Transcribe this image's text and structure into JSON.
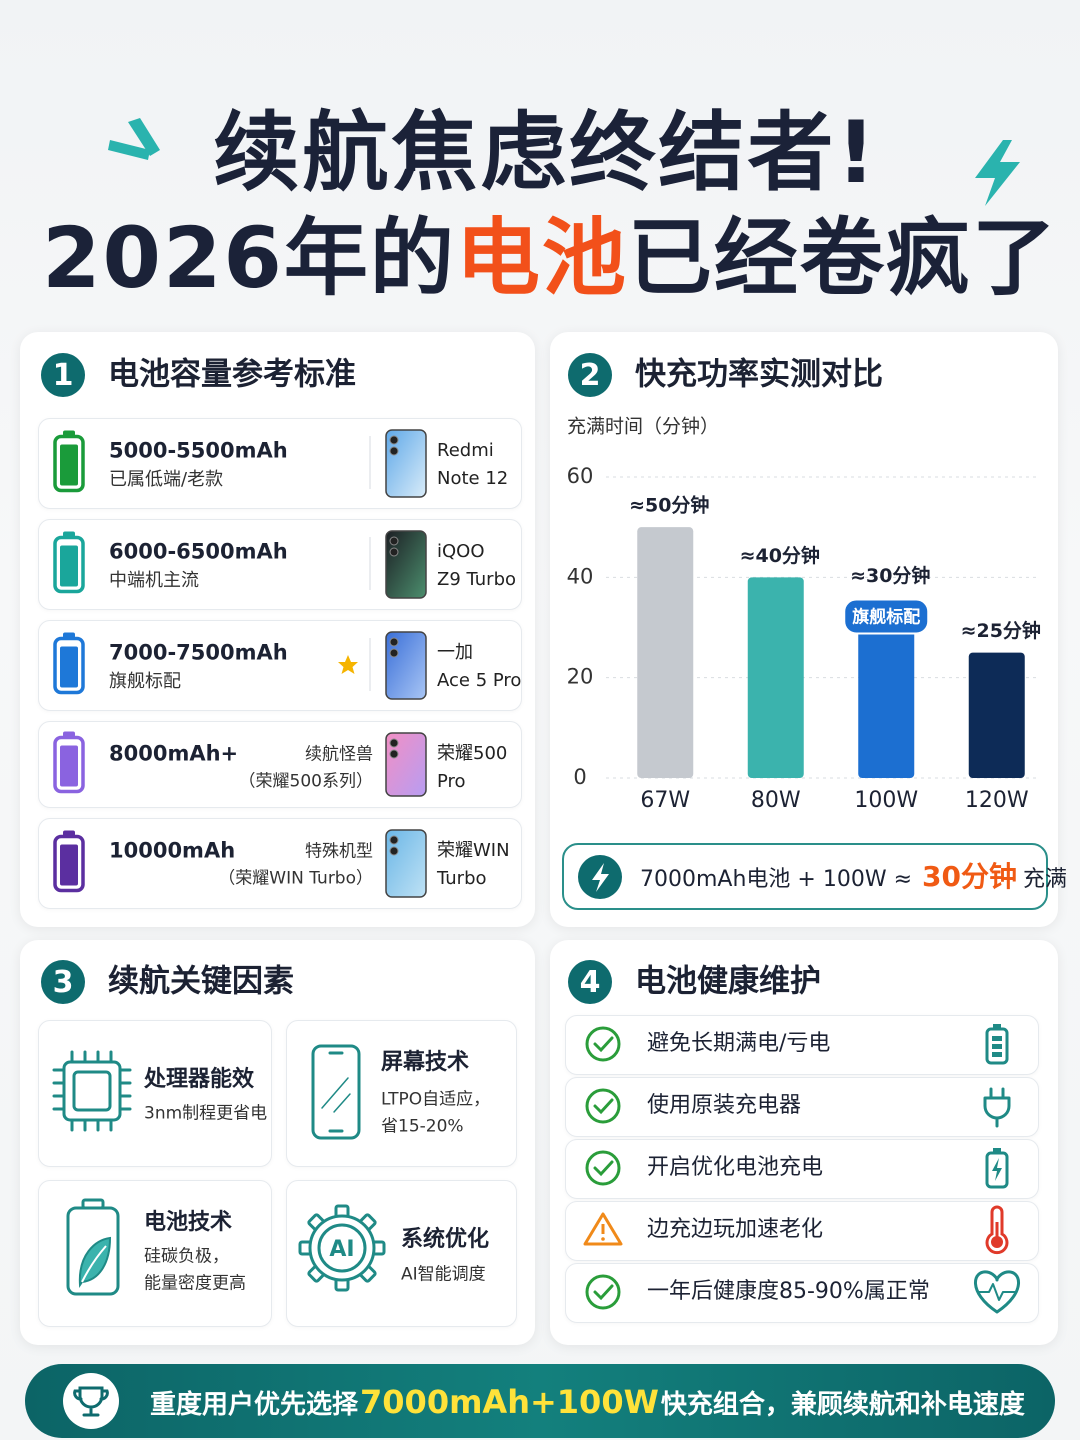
{
  "title": {
    "line1": "续航焦虑终结者!",
    "line2": {
      "before": "2026年的",
      "highlight": "电池",
      "after": "已经卷疯了"
    }
  },
  "capacity": {
    "number": "1",
    "heading": "电池容量参考标准",
    "rows": [
      {
        "capacity": "5000-5500mAh",
        "note": "已属低端/老款",
        "phone": [
          "Redmi",
          "Note 12"
        ]
      },
      {
        "capacity": "6000-6500mAh",
        "note": "中端机主流",
        "phone": [
          "iQOO",
          "Z9 Turbo"
        ]
      },
      {
        "capacity": "7000-7500mAh",
        "note": "旗舰标配",
        "phone": [
          "一加",
          "Ace 5 Pro"
        ]
      },
      {
        "capacity": "8000mAh+",
        "tag": [
          "续航怪兽",
          "（荣耀500系列）"
        ],
        "phone": [
          "荣耀500",
          "Pro"
        ]
      },
      {
        "capacity": "10000mAh",
        "tag": [
          "特殊机型",
          "（荣耀WIN Turbo）"
        ],
        "phone": [
          "荣耀WIN",
          "Turbo"
        ]
      }
    ]
  },
  "charging": {
    "number": "2",
    "heading": "快充功率实测对比",
    "summary": {
      "before": "7000mAh电池 + 100W ≈",
      "highlight": "30分钟",
      "after": "充满"
    }
  },
  "chart_data": {
    "type": "bar",
    "y_label": "充满时间（分钟）",
    "categories": [
      "67W",
      "80W",
      "100W",
      "120W"
    ],
    "values": [
      50,
      40,
      30,
      25
    ],
    "value_labels": [
      "≈50分钟",
      "≈40分钟",
      "≈30分钟",
      "≈25分钟"
    ],
    "colors": [
      "#c5c9cf",
      "#3bb3ad",
      "#1c6fd1",
      "#0d2b57"
    ],
    "annotation": "旗舰标配",
    "ylim": [
      0,
      60
    ],
    "yticks": [
      0,
      20,
      40,
      60
    ],
    "grid": true
  },
  "factors": {
    "number": "3",
    "heading": "续航关键因素",
    "items": [
      {
        "title": "处理器能效",
        "desc": [
          "3nm制程更省电"
        ]
      },
      {
        "title": "屏幕技术",
        "desc": [
          "LTPO自适应，",
          "省15-20%"
        ]
      },
      {
        "title": "电池技术",
        "desc": [
          "硅碳负极，",
          "能量密度更高"
        ]
      },
      {
        "title": "系统优化",
        "desc": [
          "AI智能调度"
        ],
        "icon_text": "AI"
      }
    ]
  },
  "health": {
    "number": "4",
    "heading": "电池健康维护",
    "items": [
      "避免长期满电/亏电",
      "使用原装充电器",
      "开启优化电池充电",
      "边充边玩加速老化",
      "一年后健康度85-90%属正常"
    ]
  },
  "footer": {
    "before": "重度用户优先选择",
    "highlight": "7000mAh+100W",
    "after": "快充组合，兼顾续航和补电速度"
  }
}
